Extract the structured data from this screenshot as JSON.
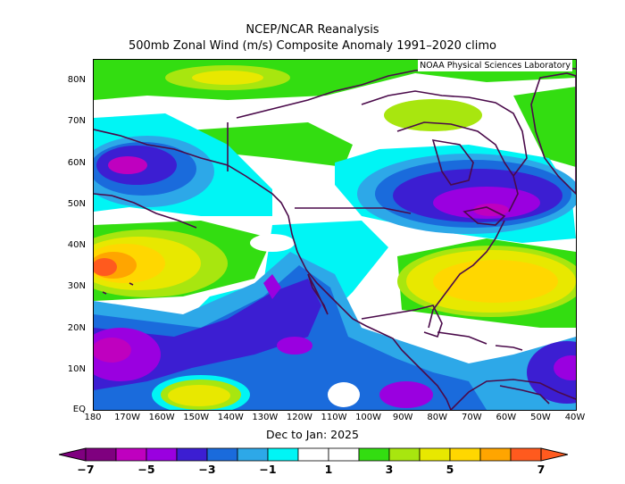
{
  "header": {
    "title_line1": "NCEP/NCAR Reanalysis",
    "title_line2": "500mb Zonal Wind (m/s) Composite Anomaly 1991–2020 climo"
  },
  "map": {
    "credit": "NOAA Physical Sciences Laboratory",
    "lat_labels": [
      "80N",
      "70N",
      "60N",
      "50N",
      "40N",
      "30N",
      "20N",
      "10N",
      "EQ"
    ],
    "lon_labels": [
      "180",
      "170W",
      "160W",
      "150W",
      "140W",
      "130W",
      "120W",
      "110W",
      "100W",
      "90W",
      "80W",
      "70W",
      "60W",
      "50W",
      "40W"
    ],
    "subtitle": "Dec to Jan: 2025"
  },
  "colorbar": {
    "labels": [
      "−7",
      "−5",
      "−3",
      "−1",
      "1",
      "3",
      "5",
      "7"
    ],
    "colors": [
      "#7f007f",
      "#bf00bf",
      "#9a00e0",
      "#3c1ed2",
      "#1a6bdc",
      "#2da8e8",
      "#00f5f5",
      "#ffffff",
      "#ffffff",
      "#33dd11",
      "#a8e60f",
      "#e8e800",
      "#ffd700",
      "#ffa500",
      "#ff5a1e"
    ]
  }
}
